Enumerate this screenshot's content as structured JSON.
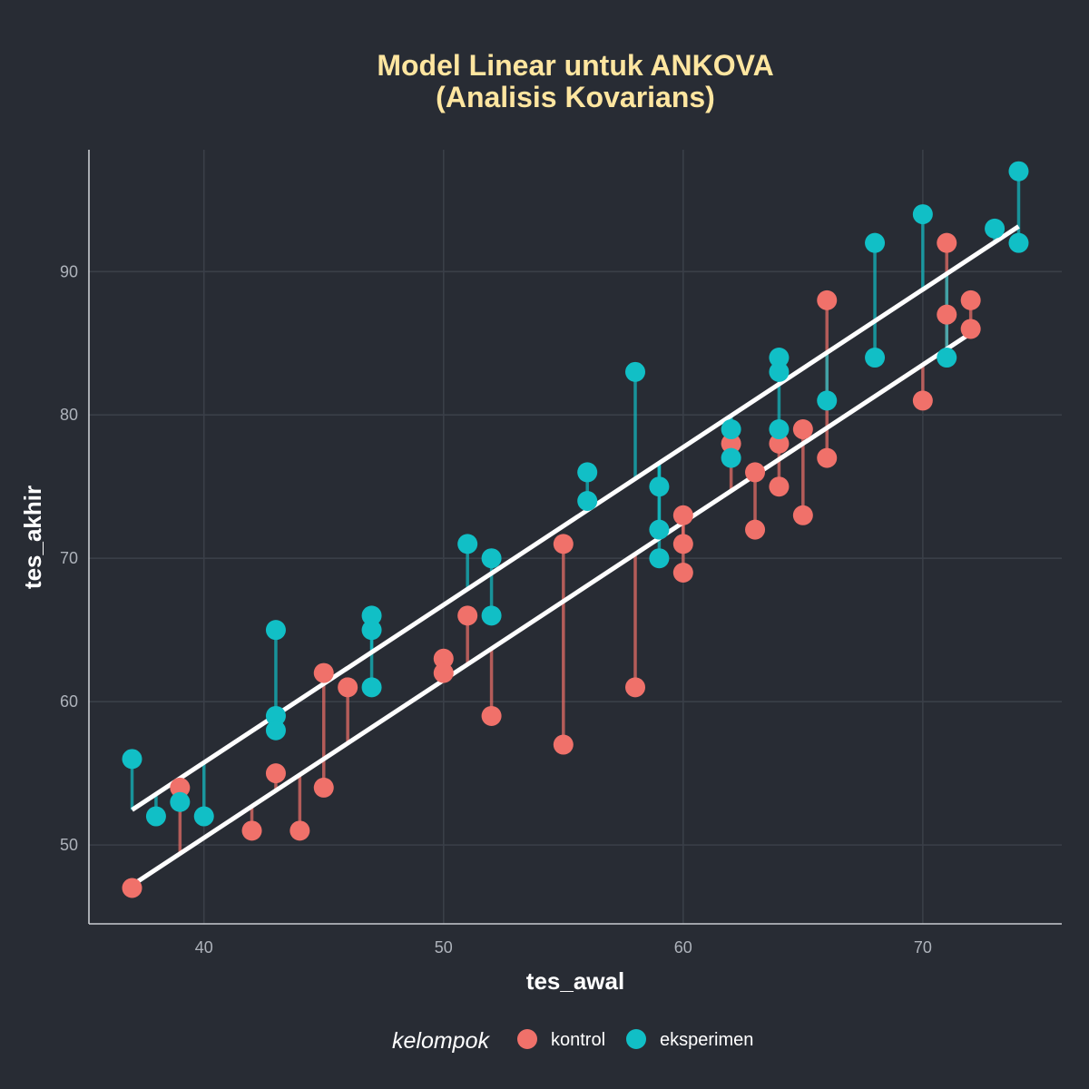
{
  "chart_data": {
    "type": "scatter",
    "title": [
      "Model Linear untuk ANKOVA",
      "(Analisis Kovarians)"
    ],
    "xlabel": "tes_awal",
    "ylabel": "tes_akhir",
    "xlim": [
      35.2,
      75.8
    ],
    "ylim": [
      44.5,
      98.5
    ],
    "x_ticks": [
      "40",
      "50",
      "60",
      "70"
    ],
    "y_ticks": [
      "50",
      "60",
      "70",
      "80",
      "90"
    ],
    "grid": true,
    "legend": {
      "title": "kelompok",
      "position": "bottom"
    },
    "fit": {
      "slope": 1.1,
      "intercept_kontrol": 6.5,
      "intercept_eksperimen": 11.75
    },
    "series": [
      {
        "name": "kontrol",
        "color": "#f0716a",
        "points": [
          [
            37,
            47
          ],
          [
            39,
            54
          ],
          [
            42,
            51
          ],
          [
            43,
            55
          ],
          [
            44,
            51
          ],
          [
            45,
            62
          ],
          [
            45,
            54
          ],
          [
            46,
            61
          ],
          [
            50,
            63
          ],
          [
            50,
            62
          ],
          [
            51,
            66
          ],
          [
            52,
            59
          ],
          [
            55,
            71
          ],
          [
            55,
            57
          ],
          [
            58,
            61
          ],
          [
            60,
            73
          ],
          [
            60,
            71
          ],
          [
            60,
            69
          ],
          [
            62,
            78
          ],
          [
            63,
            76
          ],
          [
            63,
            72
          ],
          [
            64,
            78
          ],
          [
            64,
            75
          ],
          [
            65,
            79
          ],
          [
            65,
            73
          ],
          [
            66,
            88
          ],
          [
            66,
            77
          ],
          [
            70,
            81
          ],
          [
            71,
            92
          ],
          [
            71,
            87
          ],
          [
            72,
            88
          ],
          [
            72,
            86
          ]
        ]
      },
      {
        "name": "eksperimen",
        "color": "#11bfc6",
        "points": [
          [
            37,
            56
          ],
          [
            38,
            52
          ],
          [
            39,
            53
          ],
          [
            40,
            52
          ],
          [
            43,
            65
          ],
          [
            43,
            59
          ],
          [
            43,
            58
          ],
          [
            47,
            66
          ],
          [
            47,
            65
          ],
          [
            47,
            61
          ],
          [
            51,
            71
          ],
          [
            52,
            70
          ],
          [
            52,
            66
          ],
          [
            56,
            76
          ],
          [
            56,
            74
          ],
          [
            58,
            83
          ],
          [
            59,
            75
          ],
          [
            59,
            72
          ],
          [
            59,
            70
          ],
          [
            62,
            79
          ],
          [
            62,
            77
          ],
          [
            64,
            84
          ],
          [
            64,
            83
          ],
          [
            64,
            79
          ],
          [
            66,
            81
          ],
          [
            68,
            92
          ],
          [
            68,
            84
          ],
          [
            70,
            94
          ],
          [
            71,
            84
          ],
          [
            73,
            93
          ],
          [
            74,
            97
          ],
          [
            74,
            92
          ]
        ]
      }
    ]
  }
}
